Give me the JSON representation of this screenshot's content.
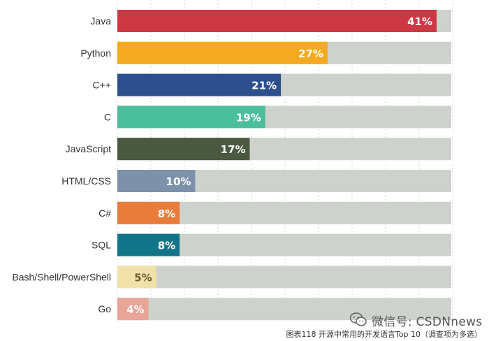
{
  "chart_data": {
    "type": "bar",
    "orientation": "horizontal",
    "categories": [
      "Java",
      "Python",
      "C++",
      "C",
      "JavaScript",
      "HTML/CSS",
      "C#",
      "SQL",
      "Bash/Shell/PowerShell",
      "Go"
    ],
    "values": [
      41,
      27,
      21,
      19,
      17,
      10,
      8,
      8,
      5,
      4
    ],
    "data_labels": [
      "41%",
      "27%",
      "21%",
      "19%",
      "17%",
      "10%",
      "8%",
      "8%",
      "5%",
      "4%"
    ],
    "colors": [
      "#cc3844",
      "#f5a921",
      "#2d4f8e",
      "#4bbf9c",
      "#4a5940",
      "#7d91ab",
      "#ea7c3b",
      "#117589",
      "#f1e0a8",
      "#e8a598"
    ],
    "track_color": "#cdd3cc",
    "xlim": [
      0,
      100
    ],
    "grid": true,
    "caption": "图表118 开源中常用的开发语言Top 10（调查项为多选）"
  },
  "watermark": {
    "text": "微信号: CSDNnews",
    "icon": "wechat-icon"
  }
}
